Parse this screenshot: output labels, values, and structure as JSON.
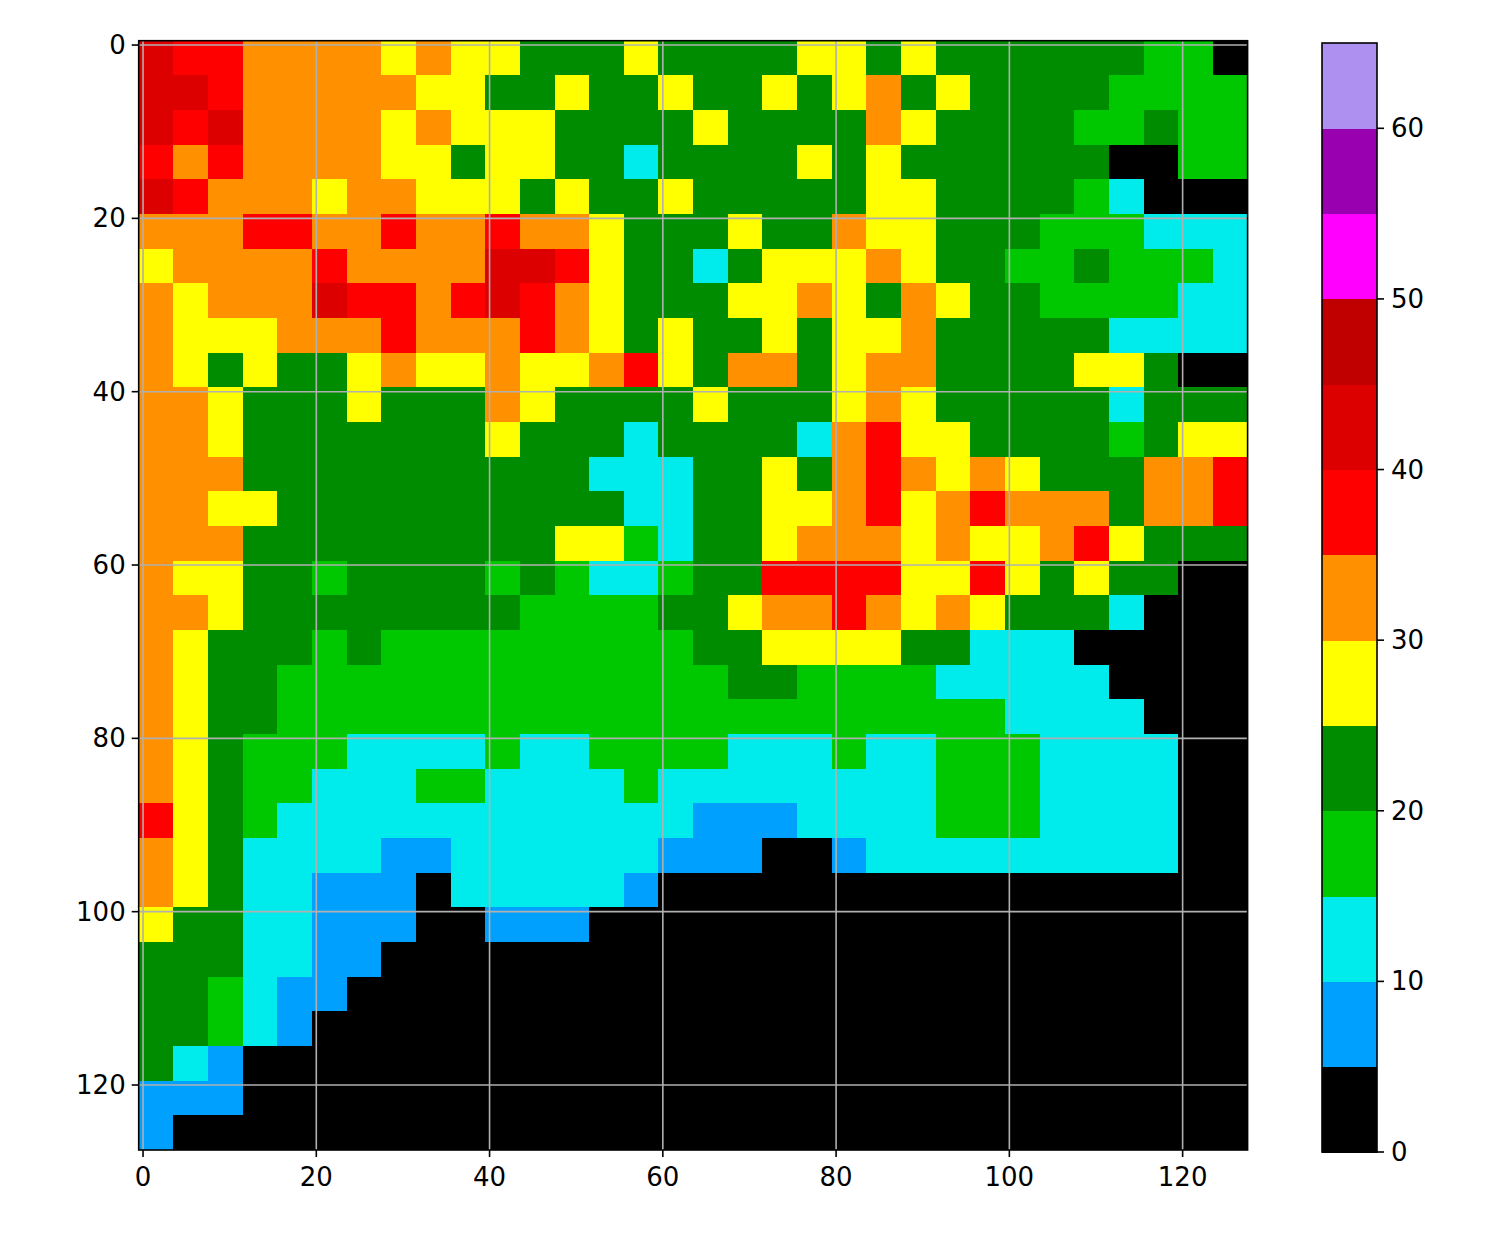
{
  "chart_data": {
    "type": "heatmap",
    "grid": true,
    "xlim": [
      -0.5,
      127.5
    ],
    "ylim": [
      127.5,
      -0.5
    ],
    "xticks": [
      0,
      20,
      40,
      60,
      80,
      100,
      120
    ],
    "yticks": [
      0,
      20,
      40,
      60,
      80,
      100,
      120
    ],
    "x": [
      0,
      4,
      8,
      12,
      16,
      20,
      24,
      28,
      32,
      36,
      40,
      44,
      48,
      52,
      56,
      60,
      64,
      68,
      72,
      76,
      80,
      84,
      88,
      92,
      96,
      100,
      104,
      108,
      112,
      116,
      120,
      124
    ],
    "y": [
      0,
      4,
      8,
      12,
      16,
      20,
      24,
      28,
      32,
      36,
      40,
      44,
      48,
      52,
      56,
      60,
      64,
      68,
      72,
      76,
      80,
      84,
      88,
      92,
      96,
      100,
      104,
      108,
      112,
      116,
      120,
      124
    ],
    "levels": [
      0,
      5,
      10,
      15,
      20,
      25,
      30,
      35,
      40,
      45,
      50,
      55,
      60,
      65
    ],
    "colors": [
      "#000000",
      "#00a0ff",
      "#00ecec",
      "#00c800",
      "#008c00",
      "#ffff00",
      "#ff9000",
      "#ff0000",
      "#dd0000",
      "#c00000",
      "#ff00ff",
      "#9900b0",
      "#ad90f0"
    ],
    "colorbar_lim": [
      0,
      65
    ],
    "colorbar_ticks": [
      0,
      10,
      20,
      30,
      40,
      50,
      60
    ],
    "cells": [
      [
        40,
        38,
        35,
        32,
        32,
        30,
        32,
        28,
        30,
        27,
        27,
        22,
        22,
        22,
        25,
        20,
        22,
        20,
        22,
        25,
        27,
        22,
        25,
        22,
        22,
        20,
        22,
        22,
        20,
        18,
        18,
        2
      ],
      [
        42,
        40,
        38,
        32,
        32,
        30,
        32,
        30,
        27,
        27,
        22,
        22,
        27,
        22,
        22,
        27,
        20,
        22,
        27,
        22,
        27,
        32,
        22,
        27,
        22,
        22,
        20,
        22,
        18,
        18,
        18,
        18
      ],
      [
        40,
        35,
        40,
        32,
        30,
        32,
        30,
        27,
        30,
        27,
        27,
        27,
        22,
        20,
        22,
        22,
        27,
        22,
        20,
        22,
        22,
        32,
        27,
        22,
        20,
        22,
        22,
        18,
        18,
        20,
        18,
        18
      ],
      [
        38,
        32,
        35,
        32,
        30,
        30,
        32,
        27,
        27,
        22,
        27,
        27,
        22,
        22,
        12,
        20,
        22,
        20,
        22,
        27,
        22,
        27,
        22,
        20,
        22,
        22,
        20,
        22,
        2,
        2,
        18,
        18
      ],
      [
        40,
        35,
        32,
        30,
        32,
        27,
        30,
        32,
        27,
        27,
        27,
        22,
        27,
        22,
        22,
        27,
        22,
        22,
        20,
        22,
        22,
        27,
        27,
        22,
        20,
        20,
        20,
        18,
        12,
        2,
        2,
        2
      ],
      [
        30,
        32,
        32,
        35,
        38,
        32,
        32,
        35,
        32,
        32,
        38,
        32,
        30,
        27,
        22,
        20,
        22,
        27,
        22,
        22,
        32,
        27,
        27,
        22,
        20,
        20,
        18,
        18,
        18,
        12,
        12,
        12
      ],
      [
        27,
        30,
        32,
        30,
        32,
        35,
        32,
        30,
        32,
        32,
        40,
        40,
        35,
        27,
        20,
        22,
        12,
        22,
        27,
        27,
        27,
        32,
        27,
        22,
        20,
        18,
        18,
        20,
        18,
        18,
        18,
        12
      ],
      [
        30,
        27,
        30,
        32,
        32,
        40,
        38,
        38,
        32,
        35,
        40,
        38,
        32,
        27,
        22,
        22,
        22,
        27,
        27,
        32,
        27,
        22,
        32,
        27,
        22,
        20,
        18,
        18,
        18,
        18,
        12,
        12
      ],
      [
        32,
        27,
        27,
        27,
        30,
        30,
        32,
        35,
        32,
        30,
        32,
        38,
        30,
        27,
        22,
        27,
        22,
        22,
        27,
        22,
        27,
        27,
        30,
        22,
        22,
        22,
        22,
        20,
        12,
        12,
        12,
        12
      ],
      [
        30,
        27,
        22,
        27,
        22,
        22,
        27,
        30,
        27,
        27,
        30,
        27,
        27,
        30,
        35,
        27,
        22,
        32,
        30,
        22,
        27,
        32,
        32,
        22,
        22,
        22,
        22,
        27,
        27,
        22,
        2,
        2
      ],
      [
        32,
        30,
        27,
        22,
        22,
        22,
        27,
        20,
        22,
        22,
        32,
        27,
        22,
        22,
        22,
        22,
        27,
        22,
        22,
        20,
        27,
        30,
        27,
        22,
        22,
        22,
        22,
        22,
        12,
        22,
        22,
        20
      ],
      [
        32,
        32,
        27,
        22,
        22,
        22,
        20,
        22,
        22,
        22,
        27,
        22,
        22,
        22,
        12,
        22,
        22,
        22,
        22,
        12,
        30,
        35,
        27,
        27,
        20,
        22,
        22,
        22,
        18,
        22,
        27,
        27
      ],
      [
        32,
        30,
        30,
        22,
        22,
        22,
        22,
        22,
        22,
        20,
        22,
        20,
        22,
        12,
        12,
        12,
        22,
        22,
        27,
        22,
        32,
        38,
        30,
        27,
        30,
        27,
        22,
        22,
        22,
        30,
        32,
        35
      ],
      [
        32,
        32,
        27,
        27,
        22,
        22,
        22,
        22,
        20,
        22,
        22,
        20,
        22,
        20,
        12,
        12,
        22,
        22,
        27,
        27,
        30,
        38,
        27,
        32,
        35,
        30,
        32,
        30,
        22,
        32,
        30,
        38
      ],
      [
        32,
        30,
        30,
        22,
        22,
        20,
        22,
        20,
        22,
        20,
        20,
        20,
        27,
        27,
        18,
        12,
        20,
        22,
        27,
        32,
        32,
        32,
        27,
        30,
        27,
        27,
        32,
        38,
        27,
        22,
        22,
        22
      ],
      [
        32,
        27,
        27,
        22,
        20,
        18,
        22,
        22,
        22,
        20,
        18,
        20,
        18,
        12,
        12,
        18,
        22,
        22,
        35,
        38,
        35,
        35,
        27,
        27,
        35,
        27,
        22,
        27,
        22,
        20,
        2,
        2
      ],
      [
        32,
        30,
        27,
        22,
        22,
        20,
        20,
        22,
        22,
        20,
        20,
        18,
        18,
        18,
        18,
        20,
        22,
        27,
        32,
        32,
        38,
        32,
        27,
        30,
        27,
        22,
        22,
        20,
        12,
        2,
        2,
        2
      ],
      [
        30,
        27,
        22,
        22,
        20,
        18,
        20,
        18,
        18,
        18,
        18,
        18,
        18,
        18,
        18,
        18,
        20,
        22,
        27,
        27,
        27,
        27,
        22,
        22,
        12,
        12,
        12,
        2,
        2,
        2,
        2,
        2
      ],
      [
        32,
        27,
        22,
        22,
        18,
        18,
        18,
        18,
        18,
        18,
        18,
        18,
        18,
        18,
        18,
        18,
        18,
        20,
        20,
        18,
        18,
        18,
        18,
        12,
        12,
        12,
        12,
        12,
        2,
        2,
        2,
        2
      ],
      [
        30,
        27,
        22,
        20,
        18,
        18,
        18,
        18,
        18,
        18,
        18,
        18,
        18,
        18,
        18,
        18,
        18,
        18,
        18,
        18,
        18,
        18,
        18,
        18,
        18,
        12,
        12,
        12,
        12,
        2,
        2,
        2
      ],
      [
        32,
        27,
        22,
        18,
        18,
        18,
        12,
        12,
        12,
        12,
        18,
        12,
        12,
        18,
        18,
        18,
        18,
        12,
        12,
        12,
        18,
        12,
        12,
        18,
        18,
        18,
        12,
        12,
        12,
        12,
        2,
        2
      ],
      [
        30,
        27,
        22,
        18,
        18,
        12,
        12,
        12,
        18,
        18,
        12,
        12,
        12,
        12,
        18,
        12,
        12,
        12,
        12,
        12,
        12,
        12,
        12,
        18,
        18,
        18,
        12,
        12,
        12,
        12,
        2,
        2
      ],
      [
        35,
        27,
        22,
        18,
        12,
        12,
        12,
        12,
        12,
        12,
        12,
        12,
        12,
        12,
        12,
        12,
        8,
        8,
        8,
        12,
        12,
        12,
        12,
        18,
        18,
        18,
        12,
        12,
        12,
        12,
        2,
        2
      ],
      [
        32,
        27,
        22,
        12,
        12,
        12,
        12,
        8,
        8,
        12,
        12,
        12,
        12,
        12,
        12,
        8,
        8,
        8,
        2,
        2,
        8,
        12,
        12,
        12,
        12,
        12,
        12,
        12,
        12,
        12,
        2,
        2
      ],
      [
        30,
        27,
        22,
        12,
        12,
        8,
        8,
        8,
        2,
        12,
        12,
        12,
        12,
        12,
        8,
        2,
        2,
        2,
        2,
        2,
        2,
        2,
        2,
        2,
        2,
        2,
        2,
        2,
        2,
        2,
        2,
        2
      ],
      [
        27,
        22,
        20,
        12,
        12,
        8,
        8,
        8,
        2,
        2,
        8,
        8,
        8,
        2,
        2,
        2,
        2,
        2,
        2,
        2,
        2,
        2,
        2,
        2,
        2,
        2,
        2,
        2,
        2,
        2,
        2,
        2
      ],
      [
        22,
        22,
        20,
        12,
        12,
        8,
        8,
        2,
        2,
        2,
        2,
        2,
        2,
        2,
        2,
        2,
        2,
        2,
        2,
        2,
        2,
        2,
        2,
        2,
        2,
        2,
        2,
        2,
        2,
        2,
        2,
        2
      ],
      [
        22,
        22,
        18,
        12,
        8,
        8,
        2,
        2,
        2,
        2,
        2,
        2,
        2,
        2,
        2,
        2,
        2,
        2,
        2,
        2,
        2,
        2,
        2,
        2,
        2,
        2,
        2,
        2,
        2,
        2,
        2,
        2
      ],
      [
        22,
        20,
        18,
        12,
        8,
        2,
        2,
        2,
        2,
        2,
        2,
        2,
        2,
        2,
        2,
        2,
        2,
        2,
        2,
        2,
        2,
        2,
        2,
        2,
        2,
        2,
        2,
        2,
        2,
        2,
        2,
        2
      ],
      [
        20,
        12,
        8,
        2,
        2,
        2,
        2,
        2,
        2,
        2,
        2,
        2,
        2,
        2,
        2,
        2,
        2,
        2,
        2,
        2,
        2,
        2,
        2,
        2,
        2,
        2,
        2,
        2,
        2,
        2,
        2,
        2
      ],
      [
        8,
        8,
        8,
        2,
        2,
        2,
        2,
        2,
        2,
        2,
        2,
        2,
        2,
        2,
        2,
        2,
        2,
        2,
        2,
        2,
        2,
        2,
        2,
        2,
        2,
        2,
        2,
        2,
        2,
        2,
        2,
        2
      ],
      [
        8,
        2,
        2,
        2,
        2,
        2,
        2,
        2,
        2,
        2,
        2,
        2,
        2,
        2,
        2,
        2,
        2,
        2,
        2,
        2,
        2,
        2,
        2,
        2,
        2,
        2,
        2,
        2,
        2,
        2,
        2,
        2
      ]
    ]
  }
}
